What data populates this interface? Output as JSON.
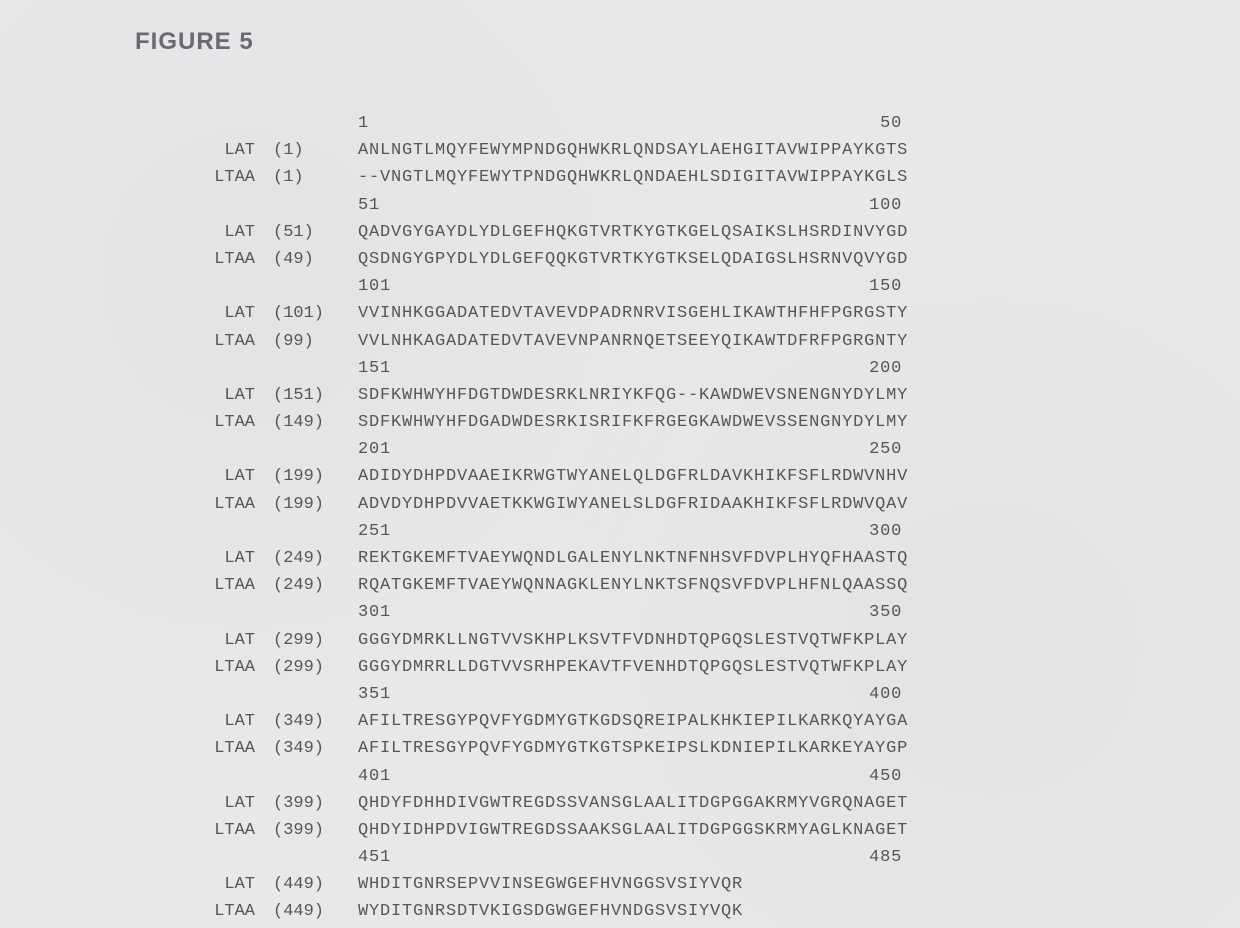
{
  "figure_title": "FIGURE 5",
  "alignment": {
    "font_family": "Courier New",
    "title_font_family": "Arial",
    "title_color": "#6a6a6f",
    "text_color": "#565658",
    "background_color": "#e8e8ea",
    "font_size_pt": 13,
    "title_font_size_pt": 18,
    "char_width_chars": 50,
    "names": [
      "LAT",
      "LTAA"
    ],
    "blocks": [
      {
        "ruler_start": "1",
        "ruler_end": "50",
        "rows": [
          {
            "name": "LAT",
            "pos": "(1)",
            "seq": "ANLNGTLMQYFEWYMPNDGQHWKRLQNDSAYLAEHGITAVWIPPAYKGTS"
          },
          {
            "name": "LTAA",
            "pos": "(1)",
            "seq": "--VNGTLMQYFEWYTPNDGQHWKRLQNDAEHLSDIGITAVWIPPAYKGLS"
          }
        ]
      },
      {
        "ruler_start": "51",
        "ruler_end": "100",
        "rows": [
          {
            "name": "LAT",
            "pos": "(51)",
            "seq": "QADVGYGAYDLYDLGEFHQKGTVRTKYGTKGELQSAIKSLHSRDINVYGD"
          },
          {
            "name": "LTAA",
            "pos": "(49)",
            "seq": "QSDNGYGPYDLYDLGEFQQKGTVRTKYGTKSELQDAIGSLHSRNVQVYGD"
          }
        ]
      },
      {
        "ruler_start": "101",
        "ruler_end": "150",
        "rows": [
          {
            "name": "LAT",
            "pos": "(101)",
            "seq": "VVINHKGGADATEDVTAVEVDPADRNRVISGEHLIKAWTHFHFPGRGSTY"
          },
          {
            "name": "LTAA",
            "pos": "(99)",
            "seq": "VVLNHKAGADATEDVTAVEVNPANRNQETSEEYQIKAWTDFRFPGRGNTY"
          }
        ]
      },
      {
        "ruler_start": "151",
        "ruler_end": "200",
        "rows": [
          {
            "name": "LAT",
            "pos": "(151)",
            "seq": "SDFKWHWYHFDGTDWDESRKLNRIYKFQG--KAWDWEVSNENGNYDYLMY"
          },
          {
            "name": "LTAA",
            "pos": "(149)",
            "seq": "SDFKWHWYHFDGADWDESRKISRIFKFRGEGKAWDWEVSSENGNYDYLMY"
          }
        ]
      },
      {
        "ruler_start": "201",
        "ruler_end": "250",
        "rows": [
          {
            "name": "LAT",
            "pos": "(199)",
            "seq": "ADIDYDHPDVAAEIKRWGTWYANELQLDGFRLDAVKHIKFSFLRDWVNHV"
          },
          {
            "name": "LTAA",
            "pos": "(199)",
            "seq": "ADVDYDHPDVVAETKKWGIWYANELSLDGFRIDAAKHIKFSFLRDWVQAV"
          }
        ]
      },
      {
        "ruler_start": "251",
        "ruler_end": "300",
        "rows": [
          {
            "name": "LAT",
            "pos": "(249)",
            "seq": "REKTGKEMFTVAEYWQNDLGALENYLNKTNFNHSVFDVPLHYQFHAASTQ"
          },
          {
            "name": "LTAA",
            "pos": "(249)",
            "seq": "RQATGKEMFTVAEYWQNNAGKLENYLNKTSFNQSVFDVPLHFNLQAASSQ"
          }
        ]
      },
      {
        "ruler_start": "301",
        "ruler_end": "350",
        "rows": [
          {
            "name": "LAT",
            "pos": "(299)",
            "seq": "GGGYDMRKLLNGTVVSKHPLKSVTFVDNHDTQPGQSLESTVQTWFKPLAY"
          },
          {
            "name": "LTAA",
            "pos": "(299)",
            "seq": "GGGYDMRRLLDGTVVSRHPEKAVTFVENHDTQPGQSLESTVQTWFKPLAY"
          }
        ]
      },
      {
        "ruler_start": "351",
        "ruler_end": "400",
        "rows": [
          {
            "name": "LAT",
            "pos": "(349)",
            "seq": "AFILTRESGYPQVFYGDMYGTKGDSQREIPALKHKIEPILKARKQYAYGA"
          },
          {
            "name": "LTAA",
            "pos": "(349)",
            "seq": "AFILTRESGYPQVFYGDMYGTKGTSPKEIPSLKDNIEPILKARKEYAYGP"
          }
        ]
      },
      {
        "ruler_start": "401",
        "ruler_end": "450",
        "rows": [
          {
            "name": "LAT",
            "pos": "(399)",
            "seq": "QHDYFDHHDIVGWTREGDSSVANSGLAALITDGPGGAKRMYVGRQNAGET"
          },
          {
            "name": "LTAA",
            "pos": "(399)",
            "seq": "QHDYIDHPDVIGWTREGDSSAAKSGLAALITDGPGGSKRMYAGLKNAGET"
          }
        ]
      },
      {
        "ruler_start": "451",
        "ruler_end": "485",
        "rows": [
          {
            "name": "LAT",
            "pos": "(449)",
            "seq": "WHDITGNRSEPVVINSEGWGEFHVNGGSVSIYVQR"
          },
          {
            "name": "LTAA",
            "pos": "(449)",
            "seq": "WYDITGNRSDTVKIGSDGWGEFHVNDGSVSIYVQK"
          }
        ]
      }
    ]
  }
}
